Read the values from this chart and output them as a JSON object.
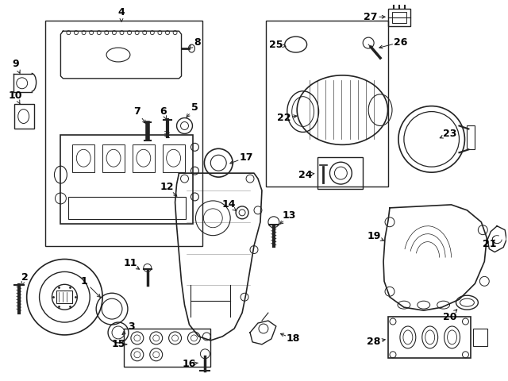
{
  "bg_color": "#ffffff",
  "line_color": "#222222",
  "label_color": "#000000",
  "fig_width": 6.4,
  "fig_height": 4.8,
  "dpi": 100
}
